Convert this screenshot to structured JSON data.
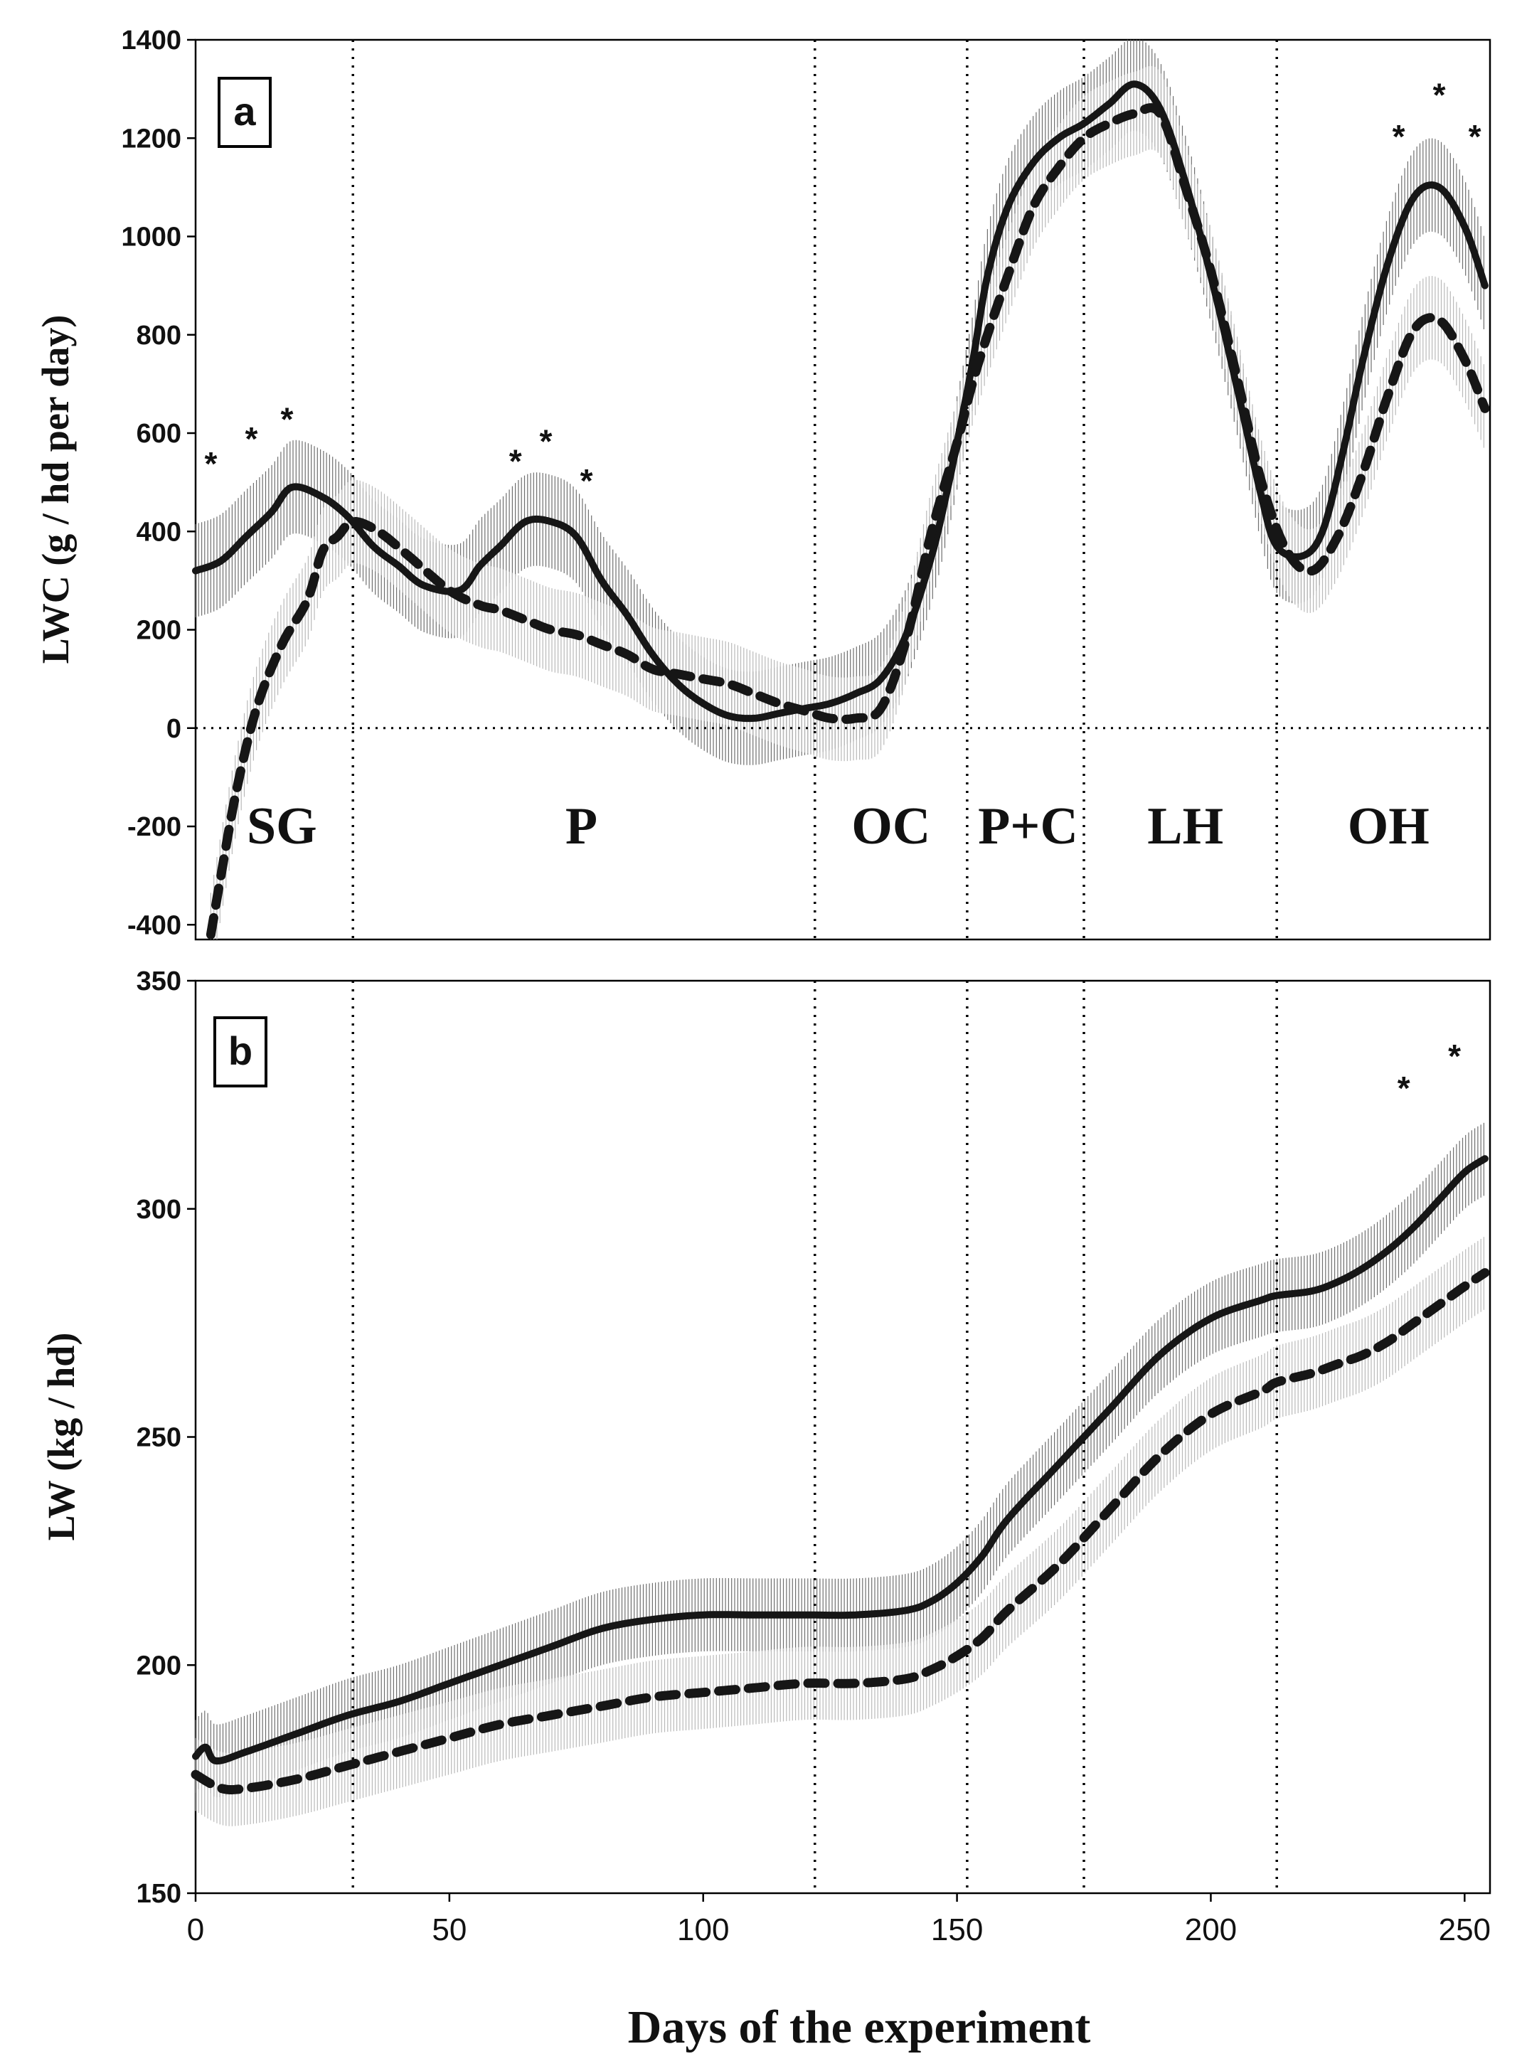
{
  "chart_data": {
    "type": "line",
    "xlabel": "Days of the experiment",
    "x_ticks": [
      "0",
      "50",
      "100",
      "150",
      "200",
      "250"
    ],
    "xlim": [
      0,
      255
    ],
    "phase_boundaries": [
      31,
      122,
      152,
      175,
      213
    ],
    "phases": [
      {
        "label": "SG",
        "x": 17
      },
      {
        "label": "P",
        "x": 76
      },
      {
        "label": "OC",
        "x": 137
      },
      {
        "label": "P+C",
        "x": 164
      },
      {
        "label": "LH",
        "x": 195
      },
      {
        "label": "OH",
        "x": 235
      }
    ],
    "panels": [
      {
        "id": "a",
        "panel_label": "a",
        "ylabel": "LWC (g / hd per day)",
        "ylim": [
          -430,
          1400
        ],
        "y_ticks": [
          "-400",
          "-200",
          "0",
          "200",
          "400",
          "600",
          "800",
          "1000",
          "1200",
          "1400"
        ],
        "zero_line": true,
        "series": [
          {
            "name": "solid",
            "style": "solid",
            "band": 95,
            "x": [
              0,
              5,
              10,
              15,
              19,
              25,
              30,
              35,
              40,
              45,
              52,
              56,
              60,
              65,
              70,
              75,
              80,
              85,
              90,
              95,
              100,
              105,
              110,
              115,
              120,
              125,
              130,
              135,
              140,
              145,
              148,
              150,
              153,
              156,
              160,
              165,
              170,
              175,
              180,
              185,
              190,
              195,
              200,
              205,
              210,
              213,
              218,
              222,
              226,
              230,
              235,
              240,
              245,
              250,
              254
            ],
            "y": [
              320,
              340,
              390,
              440,
              490,
              470,
              430,
              370,
              330,
              290,
              280,
              330,
              370,
              420,
              420,
              390,
              300,
              230,
              150,
              90,
              50,
              25,
              20,
              30,
              40,
              50,
              70,
              100,
              190,
              350,
              480,
              580,
              740,
              920,
              1060,
              1150,
              1200,
              1230,
              1270,
              1310,
              1260,
              1110,
              920,
              700,
              470,
              370,
              350,
              400,
              560,
              750,
              950,
              1080,
              1100,
              1020,
              900
            ]
          },
          {
            "name": "dashed",
            "style": "dashed",
            "band": 85,
            "x": [
              3,
              5,
              8,
              12,
              17,
              22,
              25,
              28,
              31,
              36,
              42,
              50,
              56,
              60,
              65,
              70,
              75,
              80,
              85,
              90,
              95,
              100,
              105,
              110,
              115,
              120,
              125,
              130,
              135,
              140,
              145,
              150,
              153,
              156,
              160,
              165,
              170,
              175,
              180,
              185,
              190,
              195,
              200,
              205,
              210,
              215,
              220,
              225,
              230,
              235,
              240,
              245,
              250,
              254
            ],
            "y": [
              -420,
              -300,
              -130,
              40,
              170,
              260,
              360,
              390,
              420,
              400,
              350,
              280,
              250,
              240,
              220,
              200,
              190,
              170,
              150,
              120,
              110,
              100,
              90,
              70,
              50,
              35,
              20,
              20,
              40,
              180,
              400,
              580,
              700,
              800,
              920,
              1060,
              1140,
              1200,
              1230,
              1250,
              1250,
              1100,
              930,
              720,
              500,
              360,
              320,
              390,
              520,
              680,
              810,
              830,
              750,
              650
            ]
          }
        ],
        "significance_markers": [
          {
            "x": 3,
            "y": 515
          },
          {
            "x": 11,
            "y": 565
          },
          {
            "x": 18,
            "y": 605
          },
          {
            "x": 63,
            "y": 520
          },
          {
            "x": 69,
            "y": 560
          },
          {
            "x": 77,
            "y": 480
          },
          {
            "x": 237,
            "y": 1180
          },
          {
            "x": 245,
            "y": 1265
          },
          {
            "x": 252,
            "y": 1180
          }
        ]
      },
      {
        "id": "b",
        "panel_label": "b",
        "ylabel": "LW (kg / hd)",
        "ylim": [
          150,
          350
        ],
        "y_ticks": [
          "150",
          "200",
          "250",
          "300",
          "350"
        ],
        "zero_line": false,
        "series": [
          {
            "name": "solid",
            "style": "solid",
            "band": 8,
            "x": [
              0,
              2,
              4,
              10,
              20,
              30,
              40,
              50,
              60,
              70,
              80,
              90,
              100,
              110,
              120,
              130,
              140,
              145,
              150,
              155,
              160,
              170,
              180,
              190,
              200,
              210,
              213,
              220,
              225,
              230,
              235,
              240,
              245,
              250,
              254
            ],
            "y": [
              180,
              182,
              179,
              181,
              185,
              189,
              192,
              196,
              200,
              204,
              208,
              210,
              211,
              211,
              211,
              211,
              212,
              214,
              218,
              224,
              232,
              244,
              256,
              268,
              276,
              280,
              281,
              282,
              284,
              287,
              291,
              296,
              302,
              308,
              311
            ]
          },
          {
            "name": "dashed",
            "style": "dashed",
            "band": 8,
            "x": [
              0,
              5,
              10,
              20,
              30,
              40,
              50,
              60,
              70,
              80,
              90,
              100,
              110,
              120,
              130,
              140,
              145,
              150,
              155,
              160,
              170,
              180,
              190,
              200,
              210,
              213,
              220,
              225,
              230,
              235,
              240,
              245,
              250,
              254
            ],
            "y": [
              176,
              173,
              173,
              175,
              178,
              181,
              184,
              187,
              189,
              191,
              193,
              194,
              195,
              196,
              196,
              197,
              199,
              202,
              206,
              212,
              222,
              234,
              246,
              255,
              260,
              262,
              264,
              266,
              268,
              271,
              275,
              279,
              283,
              286
            ]
          }
        ],
        "significance_markers": [
          {
            "x": 238,
            "y": 324
          },
          {
            "x": 248,
            "y": 331
          }
        ]
      }
    ]
  }
}
